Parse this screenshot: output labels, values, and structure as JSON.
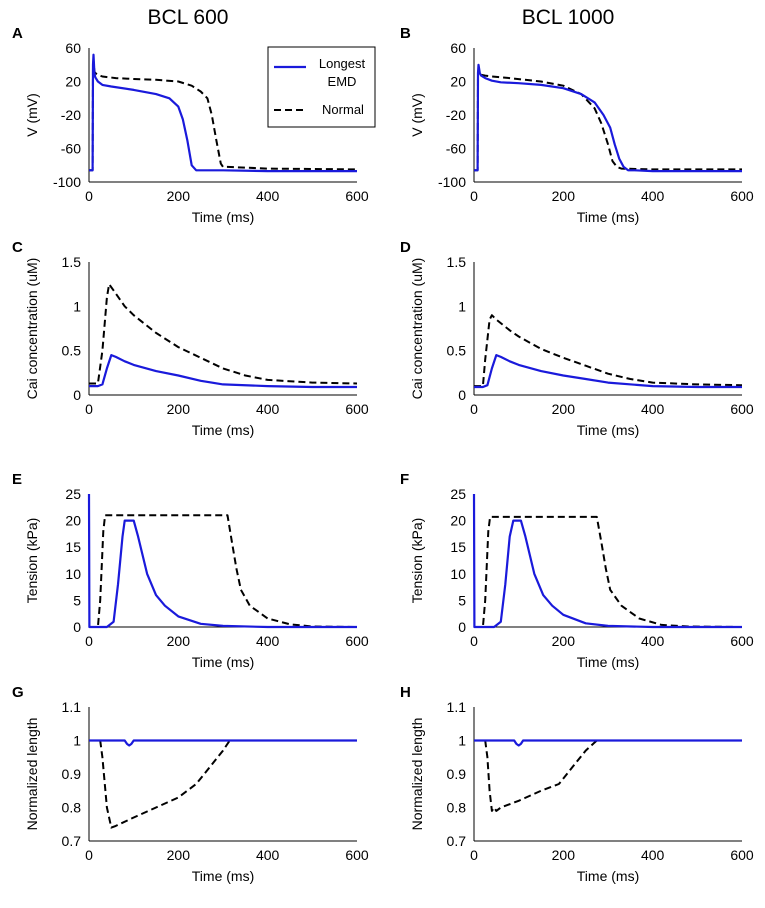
{
  "column_titles": [
    "BCL 600",
    "BCL 1000"
  ],
  "colors": {
    "longest": "#1a1adb",
    "normal": "#000000"
  },
  "legend": {
    "entries": [
      {
        "label_lines": [
          "Longest",
          "EMD"
        ],
        "style": "solid",
        "color": "#1a1adb"
      },
      {
        "label_lines": [
          "Normal"
        ],
        "style": "dashed",
        "color": "#000000"
      }
    ]
  },
  "chart_data": [
    {
      "panel": "A",
      "type": "line",
      "xlabel": "Time (ms)",
      "ylabel": "V (mV)",
      "xlim": [
        0,
        600
      ],
      "ylim": [
        -100,
        60
      ],
      "xticks": [
        "0",
        "200",
        "400",
        "600"
      ],
      "yticks": [
        "60",
        "20",
        "-20",
        "-60",
        "-100"
      ],
      "series": [
        {
          "name": "Longest EMD",
          "style": "solid",
          "x": [
            0,
            5,
            8,
            9,
            10,
            12,
            14,
            20,
            30,
            50,
            100,
            150,
            180,
            200,
            210,
            220,
            230,
            240,
            260,
            300,
            400,
            600
          ],
          "y": [
            -86,
            -86,
            -86,
            40,
            52,
            30,
            25,
            20,
            16,
            14,
            10,
            5,
            0,
            -10,
            -25,
            -50,
            -80,
            -86,
            -86,
            -86,
            -87,
            -87
          ]
        },
        {
          "name": "Normal",
          "style": "dashed",
          "x": [
            0,
            5,
            8,
            9,
            10,
            12,
            14,
            20,
            30,
            60,
            100,
            150,
            200,
            230,
            250,
            265,
            275,
            285,
            295,
            300,
            310,
            400,
            600
          ],
          "y": [
            -86,
            -86,
            -86,
            38,
            45,
            32,
            30,
            28,
            26,
            24,
            23,
            22,
            20,
            15,
            8,
            0,
            -20,
            -50,
            -78,
            -82,
            -82,
            -84,
            -85
          ]
        }
      ]
    },
    {
      "panel": "B",
      "type": "line",
      "xlabel": "Time (ms)",
      "ylabel": "V (mV)",
      "xlim": [
        0,
        600
      ],
      "ylim": [
        -100,
        60
      ],
      "xticks": [
        "0",
        "200",
        "400",
        "600"
      ],
      "yticks": [
        "60",
        "20",
        "-20",
        "-60",
        "-100"
      ],
      "series": [
        {
          "name": "Longest EMD",
          "style": "solid",
          "x": [
            0,
            5,
            8,
            9,
            10,
            13,
            16,
            25,
            40,
            60,
            100,
            150,
            200,
            240,
            270,
            290,
            305,
            315,
            325,
            335,
            345,
            360,
            400,
            600
          ],
          "y": [
            -86,
            -86,
            -86,
            30,
            40,
            30,
            27,
            24,
            21,
            19,
            18,
            16,
            12,
            5,
            -5,
            -20,
            -35,
            -55,
            -72,
            -82,
            -86,
            -86,
            -87,
            -87
          ]
        },
        {
          "name": "Normal",
          "style": "dashed",
          "x": [
            0,
            5,
            8,
            9,
            10,
            13,
            16,
            25,
            40,
            80,
            150,
            200,
            240,
            270,
            285,
            300,
            310,
            320,
            330,
            400,
            600
          ],
          "y": [
            -86,
            -86,
            -86,
            30,
            34,
            30,
            28,
            27,
            26,
            24,
            20,
            15,
            5,
            -12,
            -30,
            -55,
            -75,
            -82,
            -84,
            -85,
            -85
          ]
        }
      ]
    },
    {
      "panel": "C",
      "type": "line",
      "xlabel": "Time (ms)",
      "ylabel": "Cai concentration (uM)",
      "xlim": [
        0,
        600
      ],
      "ylim": [
        0,
        1.5
      ],
      "xticks": [
        "0",
        "200",
        "400",
        "600"
      ],
      "yticks": [
        "1.5",
        "1",
        "0.5",
        "0"
      ],
      "series": [
        {
          "name": "Longest EMD",
          "style": "solid",
          "x": [
            0,
            20,
            30,
            40,
            50,
            60,
            80,
            100,
            150,
            200,
            250,
            300,
            400,
            500,
            600
          ],
          "y": [
            0.1,
            0.1,
            0.12,
            0.3,
            0.45,
            0.43,
            0.38,
            0.34,
            0.27,
            0.22,
            0.16,
            0.12,
            0.1,
            0.09,
            0.09
          ]
        },
        {
          "name": "Normal",
          "style": "dashed",
          "x": [
            0,
            20,
            30,
            40,
            45,
            55,
            80,
            100,
            150,
            200,
            250,
            300,
            350,
            400,
            500,
            600
          ],
          "y": [
            0.13,
            0.13,
            0.5,
            1.1,
            1.25,
            1.18,
            1.0,
            0.9,
            0.7,
            0.54,
            0.42,
            0.3,
            0.22,
            0.17,
            0.14,
            0.13
          ]
        }
      ]
    },
    {
      "panel": "D",
      "type": "line",
      "xlabel": "Time (ms)",
      "ylabel": "Cai concentration (uM)",
      "xlim": [
        0,
        600
      ],
      "ylim": [
        0,
        1.5
      ],
      "xticks": [
        "0",
        "200",
        "400",
        "600"
      ],
      "yticks": [
        "1.5",
        "1",
        "0.5",
        "0"
      ],
      "series": [
        {
          "name": "Longest EMD",
          "style": "solid",
          "x": [
            0,
            20,
            30,
            40,
            50,
            60,
            80,
            100,
            150,
            200,
            250,
            300,
            400,
            500,
            600
          ],
          "y": [
            0.09,
            0.09,
            0.11,
            0.3,
            0.45,
            0.43,
            0.38,
            0.34,
            0.27,
            0.22,
            0.18,
            0.14,
            0.1,
            0.09,
            0.09
          ]
        },
        {
          "name": "Normal",
          "style": "dashed",
          "x": [
            0,
            20,
            25,
            35,
            40,
            50,
            80,
            100,
            150,
            200,
            250,
            300,
            350,
            400,
            500,
            600
          ],
          "y": [
            0.1,
            0.1,
            0.4,
            0.85,
            0.9,
            0.85,
            0.73,
            0.66,
            0.52,
            0.42,
            0.33,
            0.24,
            0.18,
            0.14,
            0.12,
            0.11
          ]
        }
      ]
    },
    {
      "panel": "E",
      "type": "line",
      "xlabel": "Time (ms)",
      "ylabel": "Tension (kPa)",
      "xlim": [
        0,
        600
      ],
      "ylim": [
        0,
        25
      ],
      "xticks": [
        "0",
        "200",
        "400",
        "600"
      ],
      "yticks": [
        "25",
        "20",
        "15",
        "10",
        "5",
        "0"
      ],
      "series": [
        {
          "name": "Longest EMD",
          "style": "solid",
          "x": [
            0,
            1,
            5,
            40,
            55,
            65,
            75,
            80,
            100,
            110,
            130,
            150,
            170,
            200,
            250,
            300,
            400,
            600
          ],
          "y": [
            25,
            0,
            0,
            0,
            1,
            8,
            17,
            20,
            20,
            17,
            10,
            6,
            4,
            2,
            0.6,
            0.2,
            0,
            0
          ]
        },
        {
          "name": "Normal",
          "style": "dashed",
          "x": [
            0,
            20,
            25,
            32,
            36,
            310,
            320,
            330,
            340,
            360,
            400,
            450,
            500,
            600
          ],
          "y": [
            0,
            0,
            5,
            18,
            21,
            21,
            16,
            11,
            7,
            4,
            1.6,
            0.5,
            0.1,
            0
          ]
        }
      ]
    },
    {
      "panel": "F",
      "type": "line",
      "xlabel": "Time (ms)",
      "ylabel": "Tension (kPa)",
      "xlim": [
        0,
        600
      ],
      "ylim": [
        0,
        25
      ],
      "xticks": [
        "0",
        "200",
        "400",
        "600"
      ],
      "yticks": [
        "25",
        "20",
        "15",
        "10",
        "5",
        "0"
      ],
      "series": [
        {
          "name": "Longest EMD",
          "style": "solid",
          "x": [
            0,
            1,
            5,
            45,
            60,
            70,
            80,
            88,
            105,
            115,
            135,
            155,
            175,
            200,
            250,
            300,
            400,
            600
          ],
          "y": [
            25,
            0,
            0,
            0,
            1,
            8,
            17,
            20,
            20,
            17,
            10,
            6,
            4,
            2.3,
            0.7,
            0.2,
            0,
            0
          ]
        },
        {
          "name": "Normal",
          "style": "dashed",
          "x": [
            0,
            20,
            25,
            32,
            36,
            275,
            285,
            295,
            305,
            330,
            370,
            420,
            480,
            600
          ],
          "y": [
            0,
            0,
            5,
            18,
            20.7,
            20.7,
            16,
            11,
            7,
            4,
            1.6,
            0.4,
            0.1,
            0
          ]
        }
      ]
    },
    {
      "panel": "G",
      "type": "line",
      "xlabel": "Time (ms)",
      "ylabel": "Normalized length",
      "xlim": [
        0,
        600
      ],
      "ylim": [
        0.7,
        1.1
      ],
      "xticks": [
        "0",
        "200",
        "400",
        "600"
      ],
      "yticks": [
        "1.1",
        "1",
        "0.9",
        "0.8",
        "0.7"
      ],
      "series": [
        {
          "name": "Longest EMD",
          "style": "solid",
          "x": [
            0,
            80,
            85,
            90,
            95,
            100,
            600
          ],
          "y": [
            1,
            1,
            0.99,
            0.985,
            0.99,
            1,
            1
          ]
        },
        {
          "name": "Normal",
          "style": "dashed",
          "x": [
            0,
            25,
            30,
            40,
            50,
            60,
            100,
            150,
            200,
            240,
            270,
            300,
            315,
            600
          ],
          "y": [
            1,
            1,
            0.95,
            0.8,
            0.74,
            0.745,
            0.77,
            0.8,
            0.83,
            0.87,
            0.92,
            0.97,
            1,
            1
          ]
        }
      ]
    },
    {
      "panel": "H",
      "type": "line",
      "xlabel": "Time (ms)",
      "ylabel": "Normalized length",
      "xlim": [
        0,
        600
      ],
      "ylim": [
        0.7,
        1.1
      ],
      "xticks": [
        "0",
        "200",
        "400",
        "600"
      ],
      "yticks": [
        "1.1",
        "1",
        "0.9",
        "0.8",
        "0.7"
      ],
      "series": [
        {
          "name": "Longest EMD",
          "style": "solid",
          "x": [
            0,
            90,
            95,
            100,
            105,
            110,
            600
          ],
          "y": [
            1,
            1,
            0.99,
            0.985,
            0.99,
            1,
            1
          ]
        },
        {
          "name": "Normal",
          "style": "dashed",
          "x": [
            0,
            25,
            30,
            35,
            40,
            45,
            50,
            60,
            100,
            150,
            190,
            220,
            250,
            275,
            600
          ],
          "y": [
            1,
            1,
            0.95,
            0.85,
            0.79,
            0.8,
            0.79,
            0.8,
            0.82,
            0.85,
            0.87,
            0.92,
            0.97,
            1,
            1
          ]
        }
      ]
    }
  ]
}
